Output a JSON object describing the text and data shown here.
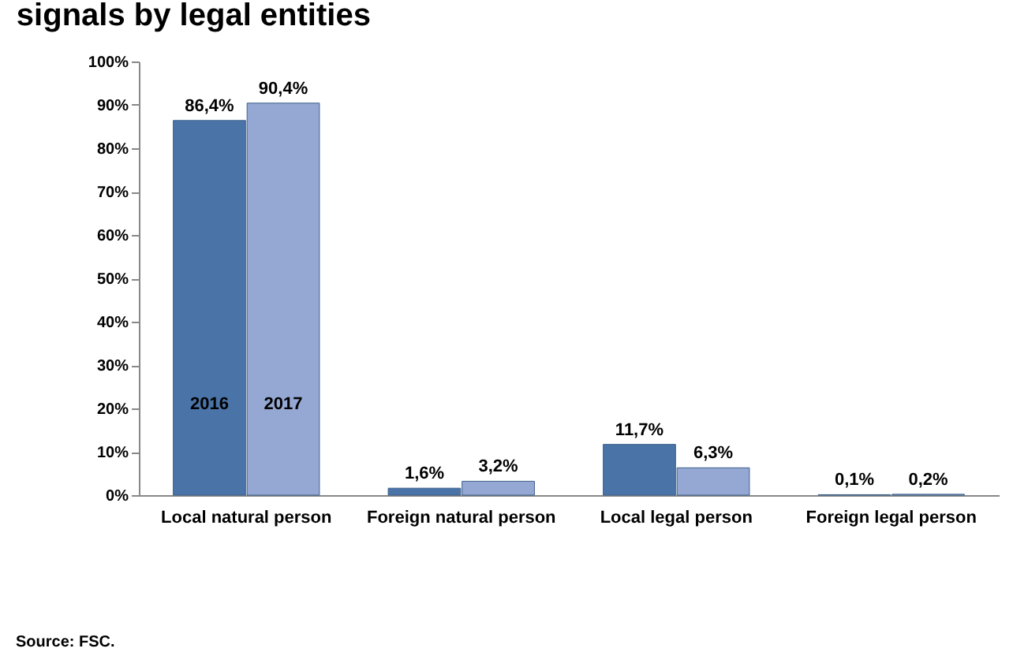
{
  "chart_data": {
    "type": "bar",
    "title": "signals by legal entities",
    "categories": [
      "Local natural person",
      "Foreign natural person",
      "Local legal person",
      "Foreign legal person"
    ],
    "series": [
      {
        "name": "2016",
        "color": "#4a74a8",
        "values": [
          86.4,
          1.6,
          11.7,
          0.1
        ],
        "value_labels": [
          "86,4%",
          "1,6%",
          "11,7%",
          "0,1%"
        ]
      },
      {
        "name": "2017",
        "color": "#95a8d3",
        "values": [
          90.4,
          3.2,
          6.3,
          0.2
        ],
        "value_labels": [
          "90,4%",
          "3,2%",
          "6,3%",
          "0,2%"
        ]
      }
    ],
    "ylim": [
      0,
      100
    ],
    "yticks": [
      {
        "value": 0,
        "label": "0%"
      },
      {
        "value": 10,
        "label": "10%"
      },
      {
        "value": 20,
        "label": "20%"
      },
      {
        "value": 30,
        "label": "30%"
      },
      {
        "value": 40,
        "label": "40%"
      },
      {
        "value": 50,
        "label": "50%"
      },
      {
        "value": 60,
        "label": "60%"
      },
      {
        "value": 70,
        "label": "70%"
      },
      {
        "value": 80,
        "label": "80%"
      },
      {
        "value": 90,
        "label": "90%"
      },
      {
        "value": 100,
        "label": "100%"
      }
    ],
    "grid": false,
    "legend": false,
    "annotations": [
      "Source: FSC."
    ]
  }
}
